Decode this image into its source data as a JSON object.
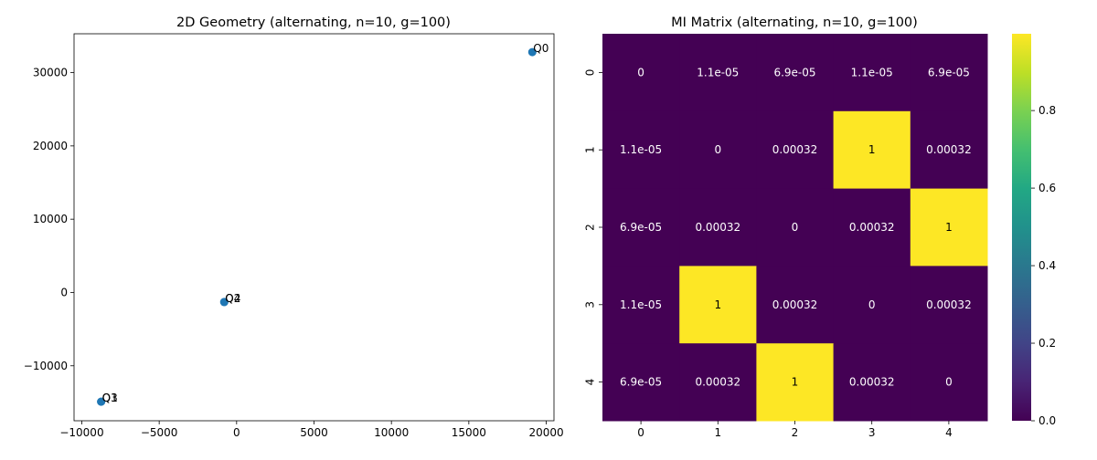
{
  "chart_data": [
    {
      "type": "scatter",
      "title": "2D Geometry (alternating, n=10, g=100)",
      "xlabel": "",
      "ylabel": "",
      "xlim": [
        -10500,
        20500
      ],
      "ylim": [
        -17500,
        35300
      ],
      "xticks": [
        -10000,
        -5000,
        0,
        5000,
        10000,
        15000,
        20000
      ],
      "yticks": [
        -10000,
        0,
        10000,
        20000,
        30000
      ],
      "xtick_labels": [
        "−10000",
        "−5000",
        "0",
        "5000",
        "10000",
        "15000",
        "20000"
      ],
      "ytick_labels": [
        "−10000",
        "0",
        "10000",
        "20000",
        "30000"
      ],
      "grid": false,
      "point_color": "#1f77b4",
      "points": [
        {
          "label": "Q0",
          "x": 19100,
          "y": 32800
        },
        {
          "label": "Q1",
          "x": -8750,
          "y": -14900
        },
        {
          "label": "Q2",
          "x": -800,
          "y": -1300
        },
        {
          "label": "Q3",
          "x": -8750,
          "y": -14900
        },
        {
          "label": "Q4",
          "x": -800,
          "y": -1300
        }
      ]
    },
    {
      "type": "heatmap",
      "title": "MI Matrix (alternating, n=10, g=100)",
      "xlabel": "",
      "ylabel": "",
      "x_categories": [
        "0",
        "1",
        "2",
        "3",
        "4"
      ],
      "y_categories": [
        "0",
        "1",
        "2",
        "3",
        "4"
      ],
      "values": [
        [
          0,
          1.1e-05,
          6.9e-05,
          1.1e-05,
          6.9e-05
        ],
        [
          1.1e-05,
          0,
          0.00032,
          1,
          0.00032
        ],
        [
          6.9e-05,
          0.00032,
          0,
          0.00032,
          1
        ],
        [
          1.1e-05,
          1,
          0.00032,
          0,
          0.00032
        ],
        [
          6.9e-05,
          0.00032,
          1,
          0.00032,
          0
        ]
      ],
      "annotations": [
        [
          "0",
          "1.1e-05",
          "6.9e-05",
          "1.1e-05",
          "6.9e-05"
        ],
        [
          "1.1e-05",
          "0",
          "0.00032",
          "1",
          "0.00032"
        ],
        [
          "6.9e-05",
          "0.00032",
          "0",
          "0.00032",
          "1"
        ],
        [
          "1.1e-05",
          "1",
          "0.00032",
          "0",
          "0.00032"
        ],
        [
          "6.9e-05",
          "0.00032",
          "1",
          "0.00032",
          "0"
        ]
      ],
      "colormap": "viridis",
      "color_low": "#440154",
      "color_high": "#fde725",
      "vmin": 0,
      "vmax": 1,
      "colorbar_ticks": [
        0,
        0.2,
        0.4,
        0.6,
        0.8
      ],
      "colorbar_tick_labels": [
        "0.0",
        "0.2",
        "0.4",
        "0.6",
        "0.8"
      ],
      "text_color_dark": "#000000",
      "text_color_light": "#ffffff"
    }
  ]
}
